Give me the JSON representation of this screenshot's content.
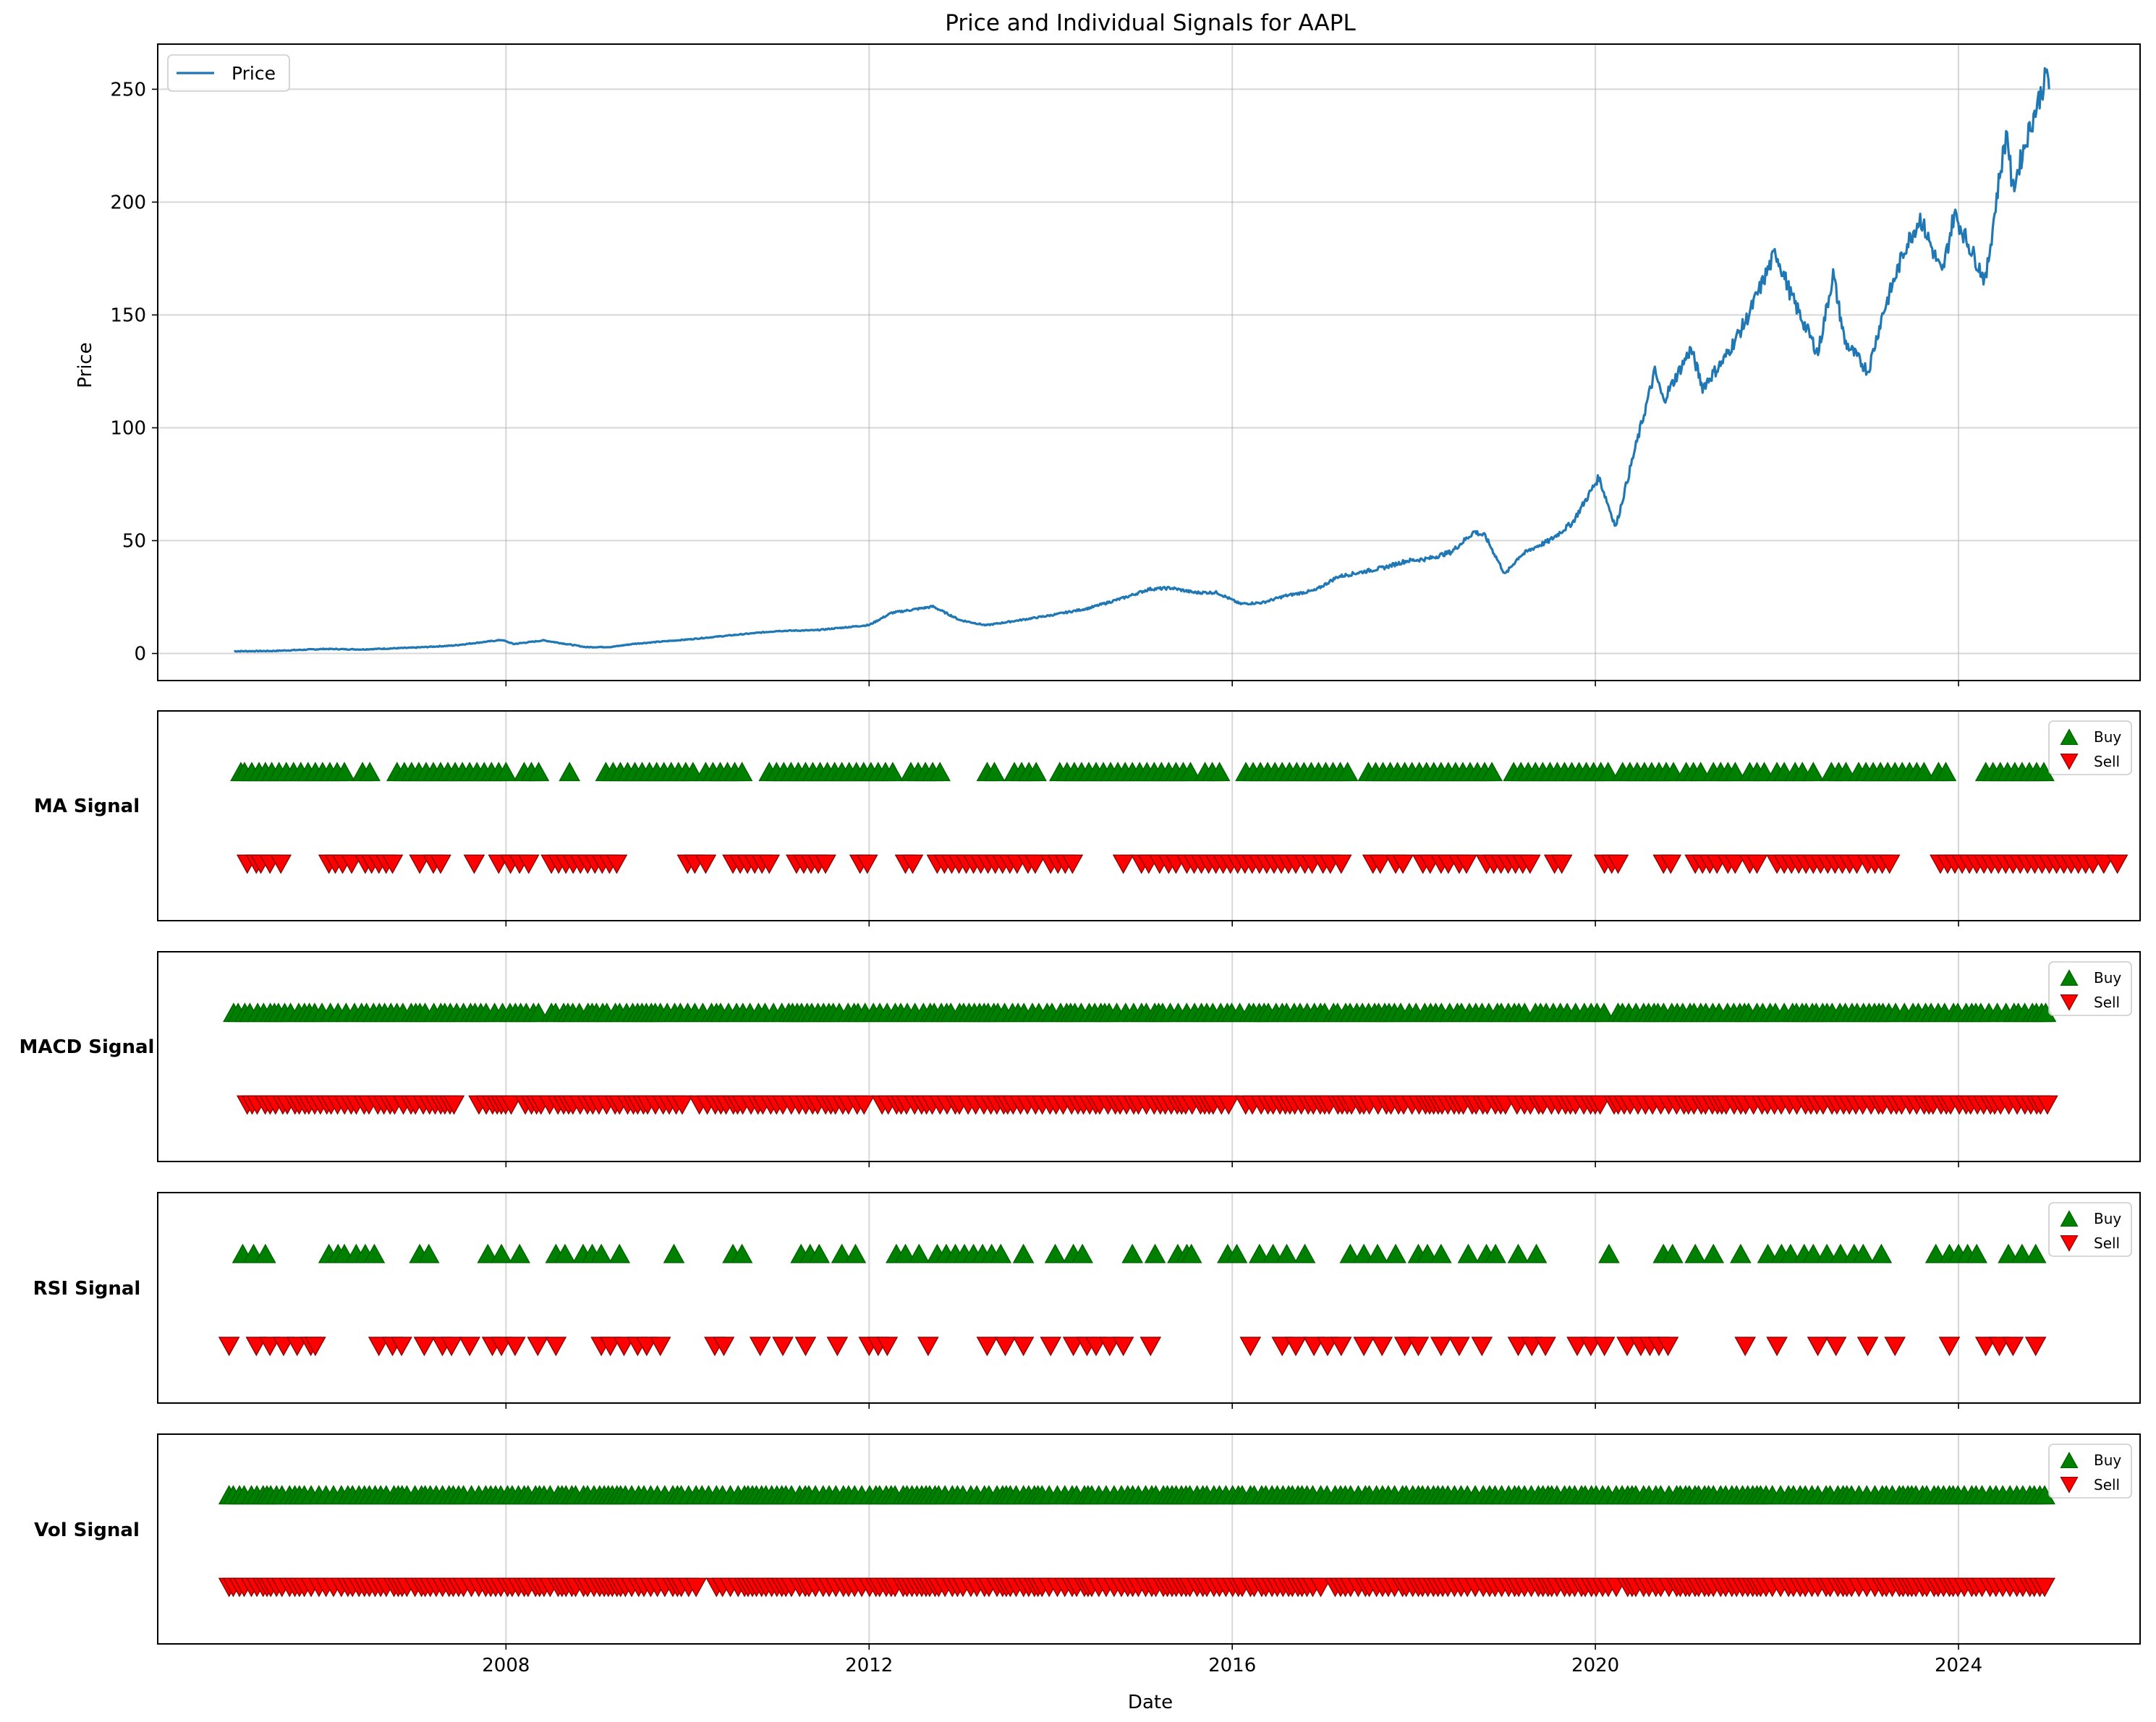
{
  "chart_data": [
    {
      "type": "line",
      "title": "Price and Individual Signals for AAPL",
      "ylabel": "Price",
      "xlabel": "",
      "ylim": [
        -12,
        270
      ],
      "xlim": [
        "2004-03-01",
        "2026-01-01"
      ],
      "yticks": [
        0,
        50,
        100,
        150,
        200,
        250
      ],
      "xticks": [
        "2008",
        "2012",
        "2016",
        "2020",
        "2024"
      ],
      "grid": true,
      "legend": "top-left",
      "series": [
        {
          "name": "Price",
          "color": "#1f77b4",
          "x": [
            "2005-01-03",
            "2005-06-01",
            "2006-01-01",
            "2006-06-01",
            "2007-01-01",
            "2007-06-01",
            "2007-12-15",
            "2008-02-01",
            "2008-06-01",
            "2008-11-20",
            "2009-03-01",
            "2009-06-01",
            "2010-01-01",
            "2010-06-01",
            "2011-01-01",
            "2011-06-01",
            "2012-01-01",
            "2012-04-01",
            "2012-09-15",
            "2013-01-01",
            "2013-04-15",
            "2013-09-01",
            "2014-01-01",
            "2014-06-01",
            "2014-11-01",
            "2015-02-01",
            "2015-05-01",
            "2015-08-01",
            "2015-11-01",
            "2016-02-01",
            "2016-05-01",
            "2016-08-01",
            "2016-12-01",
            "2017-03-01",
            "2017-06-01",
            "2017-09-01",
            "2017-12-01",
            "2018-03-01",
            "2018-06-01",
            "2018-09-01",
            "2018-10-15",
            "2019-01-03",
            "2019-03-01",
            "2019-05-01",
            "2019-07-01",
            "2019-10-01",
            "2020-01-15",
            "2020-03-23",
            "2020-06-01",
            "2020-08-28",
            "2020-10-01",
            "2021-01-20",
            "2021-03-08",
            "2021-06-01",
            "2021-09-01",
            "2021-12-27",
            "2022-03-01",
            "2022-06-15",
            "2022-08-15",
            "2022-10-01",
            "2023-01-03",
            "2023-03-01",
            "2023-06-01",
            "2023-07-31",
            "2023-10-27",
            "2023-12-15",
            "2024-04-19",
            "2024-06-15",
            "2024-07-15",
            "2024-08-05",
            "2024-10-01",
            "2024-12-26",
            "2024-12-31"
          ],
          "values": [
            1.0,
            1.1,
            2.0,
            1.8,
            2.6,
            3.5,
            6.0,
            4.2,
            5.8,
            2.8,
            2.9,
            4.3,
            6.2,
            7.8,
            10.0,
            10.3,
            12.6,
            18.0,
            20.8,
            14.8,
            12.5,
            14.8,
            16.9,
            20.0,
            25.0,
            28.5,
            29.0,
            27.0,
            27.0,
            22.0,
            22.5,
            25.5,
            28.0,
            34.0,
            36.0,
            38.0,
            41.0,
            42.0,
            45.0,
            54.0,
            52.0,
            35.0,
            43.0,
            47.0,
            50.0,
            58.0,
            78.0,
            56.0,
            87.0,
            125.0,
            112.0,
            135.0,
            118.0,
            130.0,
            148.0,
            178.0,
            158.0,
            133.0,
            168.0,
            138.0,
            125.0,
            150.0,
            180.0,
            193.0,
            168.0,
            195.0,
            165.0,
            212.0,
            232.0,
            205.0,
            228.0,
            258.0,
            250.0
          ]
        }
      ]
    },
    {
      "type": "scatter",
      "label": "MA Signal",
      "legend": "top-right",
      "series": [
        {
          "name": "Buy",
          "color": "#008000",
          "marker": "triangle-up",
          "x": [
            2005.08,
            2005.12,
            2005.2,
            2005.28,
            2005.35,
            2005.42,
            2005.5,
            2005.58,
            2005.66,
            2005.74,
            2005.82,
            2005.9,
            2005.98,
            2006.06,
            2006.14,
            2006.22,
            2006.42,
            2006.5,
            2006.8,
            2006.88,
            2006.96,
            2007.04,
            2007.12,
            2007.2,
            2007.28,
            2007.36,
            2007.44,
            2007.52,
            2007.6,
            2007.68,
            2007.76,
            2007.84,
            2007.92,
            2008.0,
            2008.2,
            2008.28,
            2008.36,
            2008.7,
            2009.1,
            2009.18,
            2009.26,
            2009.34,
            2009.42,
            2009.5,
            2009.58,
            2009.66,
            2009.74,
            2009.82,
            2009.9,
            2009.98,
            2010.06,
            2010.2,
            2010.28,
            2010.36,
            2010.44,
            2010.52,
            2010.6,
            2010.9,
            2010.98,
            2011.06,
            2011.14,
            2011.22,
            2011.3,
            2011.38,
            2011.46,
            2011.54,
            2011.62,
            2011.7,
            2011.78,
            2011.86,
            2011.94,
            2012.02,
            2012.1,
            2012.18,
            2012.26,
            2012.46,
            2012.54,
            2012.62,
            2012.7,
            2012.78,
            2013.3,
            2013.38,
            2013.6,
            2013.68,
            2013.76,
            2013.84,
            2014.1,
            2014.18,
            2014.26,
            2014.34,
            2014.42,
            2014.5,
            2014.58,
            2014.66,
            2014.74,
            2014.82,
            2014.9,
            2014.98,
            2015.06,
            2015.14,
            2015.22,
            2015.3,
            2015.38,
            2015.46,
            2015.54,
            2015.7,
            2015.78,
            2015.86,
            2016.15,
            2016.23,
            2016.31,
            2016.39,
            2016.47,
            2016.55,
            2016.63,
            2016.71,
            2016.79,
            2016.87,
            2016.95,
            2017.03,
            2017.11,
            2017.19,
            2017.27,
            2017.5,
            2017.58,
            2017.66,
            2017.74,
            2017.82,
            2017.9,
            2017.98,
            2018.06,
            2018.14,
            2018.22,
            2018.3,
            2018.38,
            2018.46,
            2018.54,
            2018.62,
            2018.7,
            2018.78,
            2018.86,
            2019.1,
            2019.18,
            2019.26,
            2019.34,
            2019.42,
            2019.5,
            2019.58,
            2019.66,
            2019.74,
            2019.82,
            2019.9,
            2019.98,
            2020.06,
            2020.14,
            2020.3,
            2020.38,
            2020.46,
            2020.54,
            2020.62,
            2020.7,
            2020.78,
            2020.86,
            2021.0,
            2021.08,
            2021.16,
            2021.3,
            2021.38,
            2021.46,
            2021.54,
            2021.7,
            2021.78,
            2021.86,
            2022.0,
            2022.08,
            2022.2,
            2022.28,
            2022.4,
            2022.6,
            2022.68,
            2022.76,
            2022.9,
            2022.98,
            2023.06,
            2023.14,
            2023.22,
            2023.3,
            2023.38,
            2023.46,
            2023.54,
            2023.62,
            2023.78,
            2023.86,
            2024.3,
            2024.38,
            2024.46,
            2024.54,
            2024.62,
            2024.7,
            2024.78,
            2024.86,
            2024.94
          ]
        },
        {
          "name": "Sell",
          "color": "#ff0000",
          "marker": "triangle-down",
          "x": [
            2005.15,
            2005.25,
            2005.3,
            2005.4,
            2005.52,
            2006.05,
            2006.12,
            2006.2,
            2006.3,
            2006.45,
            2006.52,
            2006.6,
            2006.68,
            2006.75,
            2007.05,
            2007.2,
            2007.28,
            2007.65,
            2007.92,
            2008.05,
            2008.15,
            2008.25,
            2008.5,
            2008.58,
            2008.66,
            2008.74,
            2008.82,
            2008.9,
            2008.98,
            2009.06,
            2009.14,
            2009.22,
            2010.0,
            2010.08,
            2010.2,
            2010.5,
            2010.58,
            2010.66,
            2010.74,
            2010.82,
            2010.9,
            2011.2,
            2011.28,
            2011.36,
            2011.44,
            2011.52,
            2011.9,
            2011.98,
            2012.4,
            2012.48,
            2012.75,
            2012.83,
            2012.91,
            2012.99,
            2013.07,
            2013.15,
            2013.23,
            2013.31,
            2013.39,
            2013.47,
            2013.55,
            2013.63,
            2013.75,
            2013.83,
            2014.0,
            2014.08,
            2014.16,
            2014.24,
            2014.8,
            2015.0,
            2015.08,
            2015.2,
            2015.3,
            2015.38,
            2015.5,
            2015.58,
            2015.66,
            2015.74,
            2015.82,
            2015.9,
            2015.98,
            2016.06,
            2016.14,
            2016.22,
            2016.3,
            2016.38,
            2016.46,
            2016.54,
            2016.62,
            2016.7,
            2016.8,
            2016.88,
            2017.0,
            2017.08,
            2017.2,
            2017.55,
            2017.63,
            2017.8,
            2017.88,
            2018.1,
            2018.18,
            2018.3,
            2018.38,
            2018.5,
            2018.58,
            2018.8,
            2018.88,
            2018.96,
            2019.04,
            2019.12,
            2019.2,
            2019.28,
            2019.55,
            2019.63,
            2020.1,
            2020.18,
            2020.25,
            2020.75,
            2020.83,
            2021.1,
            2021.18,
            2021.26,
            2021.34,
            2021.46,
            2021.54,
            2021.7,
            2021.78,
            2022.0,
            2022.08,
            2022.16,
            2022.24,
            2022.32,
            2022.4,
            2022.48,
            2022.56,
            2022.64,
            2022.72,
            2022.8,
            2022.88,
            2023.0,
            2023.08,
            2023.16,
            2023.24,
            2023.8,
            2023.88,
            2023.96,
            2024.04,
            2024.12,
            2024.2,
            2024.28,
            2024.36,
            2024.44,
            2024.52,
            2024.6,
            2024.68,
            2024.76,
            2024.84,
            2024.92,
            2025.0,
            2025.08,
            2025.16,
            2025.24,
            2025.32,
            2025.4,
            2025.48,
            2025.6,
            2025.75
          ]
        }
      ]
    },
    {
      "type": "scatter",
      "label": "MACD Signal",
      "legend": "top-right",
      "series": [
        {
          "name": "Buy",
          "color": "#008000",
          "marker": "triangle-up",
          "density": "continuous",
          "start": 2005.0,
          "end": 2025.0,
          "step": 0.07,
          "gaps": [
            [
              2005.52,
              2005.56
            ],
            [
              2008.4,
              2008.45
            ],
            [
              2016.1,
              2016.14
            ],
            [
              2017.3,
              2017.34
            ],
            [
              2019.25,
              2019.29
            ],
            [
              2020.15,
              2020.19
            ]
          ]
        },
        {
          "name": "Sell",
          "color": "#ff0000",
          "marker": "triangle-down",
          "density": "continuous",
          "start": 2005.15,
          "end": 2025.0,
          "step": 0.07,
          "gaps": [
            [
              2007.5,
              2007.7
            ],
            [
              2008.1,
              2008.18
            ],
            [
              2010.0,
              2010.05
            ],
            [
              2012.0,
              2012.05
            ],
            [
              2016.0,
              2016.08
            ],
            [
              2019.05,
              2019.12
            ],
            [
              2020.1,
              2020.16
            ]
          ]
        }
      ]
    },
    {
      "type": "scatter",
      "label": "RSI Signal",
      "legend": "top-right",
      "series": [
        {
          "name": "Buy",
          "color": "#008000",
          "marker": "triangle-up",
          "x": [
            2005.1,
            2005.22,
            2005.35,
            2006.05,
            2006.15,
            2006.22,
            2006.35,
            2006.45,
            2006.55,
            2007.05,
            2007.15,
            2007.8,
            2007.95,
            2008.15,
            2008.55,
            2008.65,
            2008.85,
            2008.95,
            2009.05,
            2009.25,
            2009.85,
            2010.5,
            2010.6,
            2011.25,
            2011.35,
            2011.45,
            2011.7,
            2011.85,
            2012.3,
            2012.4,
            2012.55,
            2012.75,
            2012.85,
            2012.95,
            2013.05,
            2013.15,
            2013.25,
            2013.35,
            2013.45,
            2013.7,
            2014.05,
            2014.25,
            2014.35,
            2014.9,
            2015.15,
            2015.4,
            2015.5,
            2015.55,
            2015.95,
            2016.05,
            2016.3,
            2016.45,
            2016.6,
            2016.8,
            2017.3,
            2017.45,
            2017.6,
            2017.8,
            2018.05,
            2018.15,
            2018.3,
            2018.6,
            2018.8,
            2018.9,
            2019.15,
            2019.35,
            2020.15,
            2020.75,
            2020.85,
            2021.1,
            2021.3,
            2021.6,
            2021.9,
            2022.05,
            2022.15,
            2022.3,
            2022.4,
            2022.55,
            2022.7,
            2022.85,
            2022.95,
            2023.15,
            2023.75,
            2023.9,
            2024.0,
            2024.1,
            2024.2,
            2024.55,
            2024.7,
            2024.85
          ]
        },
        {
          "name": "Sell",
          "color": "#ff0000",
          "marker": "triangle-down",
          "x": [
            2004.95,
            2005.25,
            2005.4,
            2005.55,
            2005.7,
            2005.85,
            2005.9,
            2006.6,
            2006.75,
            2006.85,
            2007.1,
            2007.3,
            2007.4,
            2007.6,
            2007.85,
            2007.95,
            2008.1,
            2008.35,
            2008.55,
            2009.05,
            2009.15,
            2009.3,
            2009.45,
            2009.55,
            2009.7,
            2010.3,
            2010.4,
            2010.8,
            2011.05,
            2011.3,
            2011.65,
            2012.0,
            2012.1,
            2012.2,
            2012.65,
            2013.3,
            2013.5,
            2013.7,
            2014.0,
            2014.25,
            2014.4,
            2014.5,
            2014.65,
            2014.8,
            2015.1,
            2016.2,
            2016.55,
            2016.7,
            2016.9,
            2017.05,
            2017.2,
            2017.45,
            2017.65,
            2017.9,
            2018.05,
            2018.3,
            2018.5,
            2018.75,
            2019.15,
            2019.3,
            2019.45,
            2019.8,
            2019.95,
            2020.1,
            2020.35,
            2020.5,
            2020.6,
            2020.7,
            2020.8,
            2021.65,
            2022.0,
            2022.45,
            2022.65,
            2023.0,
            2023.3,
            2023.9,
            2024.3,
            2024.45,
            2024.6,
            2024.85
          ]
        }
      ]
    },
    {
      "type": "scatter",
      "label": "Vol Signal",
      "xlabel": "Date",
      "legend": "top-right",
      "series": [
        {
          "name": "Buy",
          "color": "#008000",
          "marker": "triangle-up",
          "density": "continuous",
          "start": 2004.95,
          "end": 2025.0,
          "step": 0.065,
          "gaps": []
        },
        {
          "name": "Sell",
          "color": "#ff0000",
          "marker": "triangle-down",
          "density": "continuous",
          "start": 2004.95,
          "end": 2025.0,
          "step": 0.065,
          "gaps": [
            [
              2010.15,
              2010.25
            ],
            [
              2017.0,
              2017.12
            ],
            [
              2020.25,
              2020.35
            ]
          ]
        }
      ]
    }
  ]
}
